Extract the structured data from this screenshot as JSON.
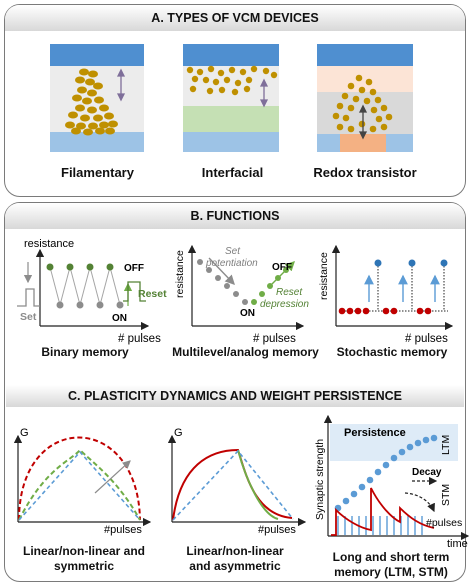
{
  "panel_a": {
    "title": "A. TYPES OF VCM DEVICES",
    "devices": [
      "Filamentary",
      "Interfacial",
      "Redox transistor"
    ]
  },
  "panel_b": {
    "title": "B. FUNCTIONS",
    "binary": {
      "ylabel": "resistance",
      "xlabel": "# pulses",
      "off": "OFF",
      "on": "ON",
      "set": "Set",
      "reset": "Reset",
      "caption": "Binary memory"
    },
    "multilevel": {
      "ylabel": "resistance",
      "xlabel": "# pulses",
      "set": "Set",
      "potentiation": "potentiation",
      "reset": "Reset",
      "depression": "depression",
      "off": "OFF",
      "on": "ON",
      "caption": "Multilevel/analog memory"
    },
    "stochastic": {
      "ylabel": "resistance",
      "xlabel": "# pulses",
      "caption": "Stochastic memory"
    }
  },
  "panel_c": {
    "title": "C. PLASTICITY DYNAMICS AND WEIGHT PERSISTENCE",
    "sym": {
      "ylabel": "G",
      "xlabel": "#pulses",
      "caption1": "Linear/non-linear and",
      "caption2": "symmetric"
    },
    "asym": {
      "ylabel": "G",
      "xlabel": "#pulses",
      "caption1": "Linear/non-linear",
      "caption2": "and asymmetric"
    },
    "ltm": {
      "ylabel": "Synaptic strength",
      "xlabel": "time",
      "persistence": "Persistence",
      "ltm": "LTM",
      "stm": "STM",
      "decay": "Decay",
      "pulses": "#pulses",
      "caption1": "Long and short term",
      "caption2": "memory (LTM, STM)"
    }
  },
  "colors": {
    "blue_top": "#5b9bd5",
    "blue_bottom": "#9dc3e6",
    "gold": "#bf9000",
    "green": "#70ad47",
    "red": "#c00000",
    "gray": "#a6a6a6"
  }
}
